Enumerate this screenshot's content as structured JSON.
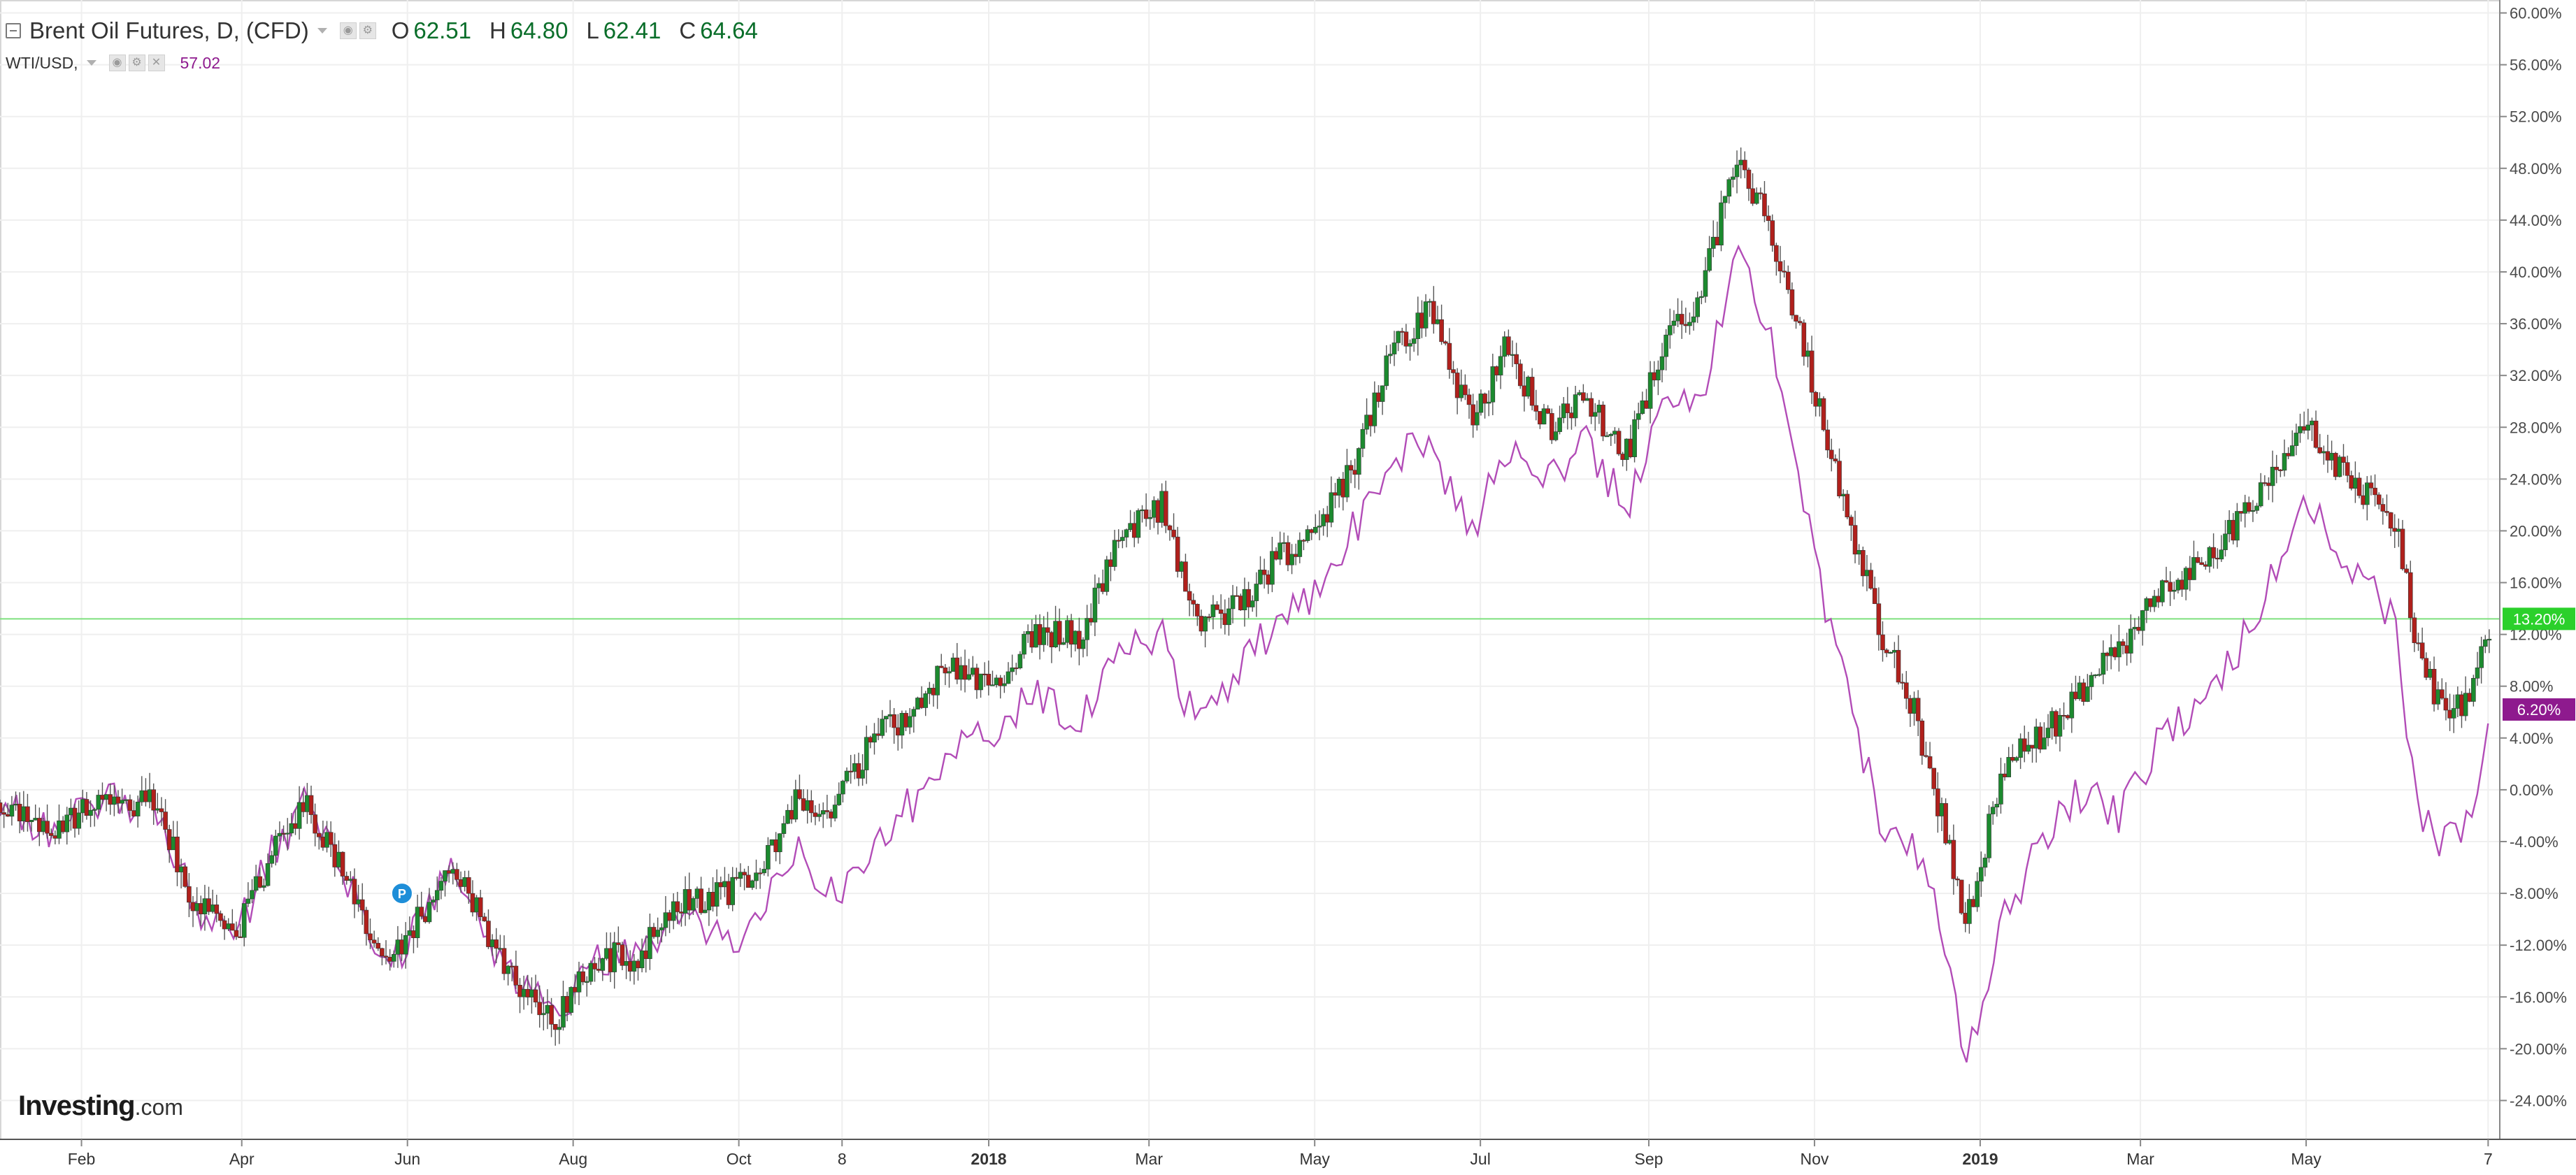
{
  "legend": {
    "main_title": "Brent Oil Futures, D, (CFD)",
    "ohlc": [
      {
        "key": "O",
        "value": "62.51"
      },
      {
        "key": "H",
        "value": "64.80"
      },
      {
        "key": "L",
        "value": "62.41"
      },
      {
        "key": "C",
        "value": "64.64"
      }
    ],
    "compare_symbol": "WTI/USD,",
    "compare_value": "57.02"
  },
  "watermark": {
    "brand": "Investing",
    "suffix": ".com"
  },
  "colors": {
    "up": "#1c8a2f",
    "down": "#b0201c",
    "wick": "#555555",
    "wti": "#b24cb7",
    "hline": "#7ee07e",
    "badge_brent": "#2bd02b",
    "badge_wti": "#8e1a8e",
    "grid": "#efefef",
    "axis_text": "#4a4a4a"
  },
  "chart_data": {
    "type": "line",
    "title": "Brent Oil Futures, D, (CFD)",
    "y_unit": "percent change",
    "ylim": [
      -27,
      61
    ],
    "grid": true,
    "y_ticks": [
      "60.00%",
      "56.00%",
      "52.00%",
      "48.00%",
      "44.00%",
      "40.00%",
      "36.00%",
      "32.00%",
      "28.00%",
      "24.00%",
      "20.00%",
      "16.00%",
      "12.00%",
      "8.00%",
      "4.00%",
      "0.00%",
      "-4.00%",
      "-8.00%",
      "-12.00%",
      "-16.00%",
      "-20.00%",
      "-24.00%"
    ],
    "x_ticks": [
      "Feb",
      "Apr",
      "Jun",
      "Aug",
      "Oct",
      "8",
      "2018",
      "Mar",
      "May",
      "Jul",
      "Sep",
      "Nov",
      "2019",
      "Mar",
      "May",
      "7"
    ],
    "x_start": "2017-01-02",
    "x_end": "2019-07-10",
    "series": [
      {
        "name": "Brent Oil Futures",
        "style": "candlestick",
        "points": [
          [
            "2017-01-02",
            -1
          ],
          [
            "2017-01-20",
            -3
          ],
          [
            "2017-02-10",
            -1
          ],
          [
            "2017-02-28",
            -1
          ],
          [
            "2017-03-15",
            -9
          ],
          [
            "2017-03-30",
            -11
          ],
          [
            "2017-04-12",
            -5
          ],
          [
            "2017-04-25",
            -1
          ],
          [
            "2017-05-10",
            -7
          ],
          [
            "2017-05-25",
            -14
          ],
          [
            "2017-06-05",
            -10
          ],
          [
            "2017-06-20",
            -6
          ],
          [
            "2017-07-02",
            -12
          ],
          [
            "2017-07-12",
            -15
          ],
          [
            "2017-07-26",
            -18
          ],
          [
            "2017-08-08",
            -13
          ],
          [
            "2017-08-24",
            -13
          ],
          [
            "2017-09-08",
            -9
          ],
          [
            "2017-09-26",
            -8
          ],
          [
            "2017-10-08",
            -6
          ],
          [
            "2017-10-22",
            -1
          ],
          [
            "2017-11-06",
            -1
          ],
          [
            "2017-11-20",
            4
          ],
          [
            "2017-12-04",
            6
          ],
          [
            "2017-12-18",
            10
          ],
          [
            "2018-01-02",
            8
          ],
          [
            "2018-01-18",
            12
          ],
          [
            "2018-02-04",
            12
          ],
          [
            "2018-02-20",
            20
          ],
          [
            "2018-03-06",
            22
          ],
          [
            "2018-03-18",
            13
          ],
          [
            "2018-04-02",
            14
          ],
          [
            "2018-04-18",
            18
          ],
          [
            "2018-05-02",
            20
          ],
          [
            "2018-05-15",
            25
          ],
          [
            "2018-05-30",
            34
          ],
          [
            "2018-06-12",
            37
          ],
          [
            "2018-06-28",
            28
          ],
          [
            "2018-07-10",
            34
          ],
          [
            "2018-07-26",
            28
          ],
          [
            "2018-08-08",
            30
          ],
          [
            "2018-08-24",
            26
          ],
          [
            "2018-09-06",
            34
          ],
          [
            "2018-09-20",
            38
          ],
          [
            "2018-10-03",
            49
          ],
          [
            "2018-10-15",
            44
          ],
          [
            "2018-10-28",
            34
          ],
          [
            "2018-11-12",
            22
          ],
          [
            "2018-11-26",
            12
          ],
          [
            "2018-12-08",
            6
          ],
          [
            "2018-12-20",
            -4
          ],
          [
            "2018-12-27",
            -10
          ],
          [
            "2019-01-10",
            2
          ],
          [
            "2019-01-24",
            4
          ],
          [
            "2019-02-08",
            8
          ],
          [
            "2019-02-22",
            11
          ],
          [
            "2019-03-06",
            15
          ],
          [
            "2019-03-20",
            17
          ],
          [
            "2019-04-04",
            20
          ],
          [
            "2019-04-18",
            24
          ],
          [
            "2019-05-01",
            28
          ],
          [
            "2019-05-16",
            24
          ],
          [
            "2019-05-28",
            22
          ],
          [
            "2019-06-04",
            20
          ],
          [
            "2019-06-10",
            12
          ],
          [
            "2019-06-20",
            6
          ],
          [
            "2019-07-01",
            7
          ],
          [
            "2019-07-08",
            13.2
          ]
        ]
      },
      {
        "name": "WTI/USD",
        "style": "line",
        "points": [
          [
            "2017-01-02",
            -1
          ],
          [
            "2017-01-20",
            -3
          ],
          [
            "2017-02-10",
            -1
          ],
          [
            "2017-02-28",
            -1
          ],
          [
            "2017-03-15",
            -9
          ],
          [
            "2017-03-30",
            -11
          ],
          [
            "2017-04-12",
            -5
          ],
          [
            "2017-04-25",
            -1
          ],
          [
            "2017-05-10",
            -7
          ],
          [
            "2017-05-25",
            -14
          ],
          [
            "2017-06-05",
            -10
          ],
          [
            "2017-06-20",
            -6
          ],
          [
            "2017-07-02",
            -12
          ],
          [
            "2017-07-12",
            -15
          ],
          [
            "2017-07-26",
            -18
          ],
          [
            "2017-08-08",
            -13
          ],
          [
            "2017-08-24",
            -13
          ],
          [
            "2017-09-08",
            -10
          ],
          [
            "2017-09-26",
            -12
          ],
          [
            "2017-10-08",
            -10
          ],
          [
            "2017-10-22",
            -5
          ],
          [
            "2017-11-06",
            -8
          ],
          [
            "2017-11-20",
            -4
          ],
          [
            "2017-12-04",
            -1
          ],
          [
            "2017-12-18",
            3
          ],
          [
            "2018-01-02",
            4
          ],
          [
            "2018-01-18",
            8
          ],
          [
            "2018-02-04",
            5
          ],
          [
            "2018-02-20",
            11
          ],
          [
            "2018-03-06",
            12
          ],
          [
            "2018-03-18",
            5
          ],
          [
            "2018-04-02",
            9
          ],
          [
            "2018-04-18",
            13
          ],
          [
            "2018-05-02",
            15
          ],
          [
            "2018-05-15",
            20
          ],
          [
            "2018-05-30",
            26
          ],
          [
            "2018-06-12",
            27
          ],
          [
            "2018-06-28",
            20
          ],
          [
            "2018-07-10",
            26
          ],
          [
            "2018-07-26",
            24
          ],
          [
            "2018-08-08",
            27
          ],
          [
            "2018-08-24",
            22
          ],
          [
            "2018-09-06",
            30
          ],
          [
            "2018-09-20",
            30
          ],
          [
            "2018-10-03",
            42
          ],
          [
            "2018-10-15",
            36
          ],
          [
            "2018-10-28",
            22
          ],
          [
            "2018-11-12",
            8
          ],
          [
            "2018-11-26",
            -3
          ],
          [
            "2018-12-08",
            -5
          ],
          [
            "2018-12-20",
            -12
          ],
          [
            "2018-12-27",
            -21
          ],
          [
            "2019-01-10",
            -10
          ],
          [
            "2019-01-24",
            -4
          ],
          [
            "2019-02-08",
            0
          ],
          [
            "2019-02-22",
            -2
          ],
          [
            "2019-03-06",
            3
          ],
          [
            "2019-03-20",
            6
          ],
          [
            "2019-04-04",
            10
          ],
          [
            "2019-04-18",
            16
          ],
          [
            "2019-05-01",
            22
          ],
          [
            "2019-05-16",
            18
          ],
          [
            "2019-05-28",
            15
          ],
          [
            "2019-06-04",
            12
          ],
          [
            "2019-06-10",
            -1
          ],
          [
            "2019-06-20",
            -4
          ],
          [
            "2019-07-01",
            -2
          ],
          [
            "2019-07-08",
            6.2
          ]
        ]
      }
    ],
    "horizontal_line": 13.2,
    "last_value_labels": [
      {
        "series": "Brent Oil Futures",
        "label": "13.20%",
        "value": 13.2
      },
      {
        "series": "WTI/USD",
        "label": "6.20%",
        "value": 6.2
      }
    ],
    "marker": {
      "date": "2017-05-30",
      "value": -8,
      "label": "P"
    }
  }
}
